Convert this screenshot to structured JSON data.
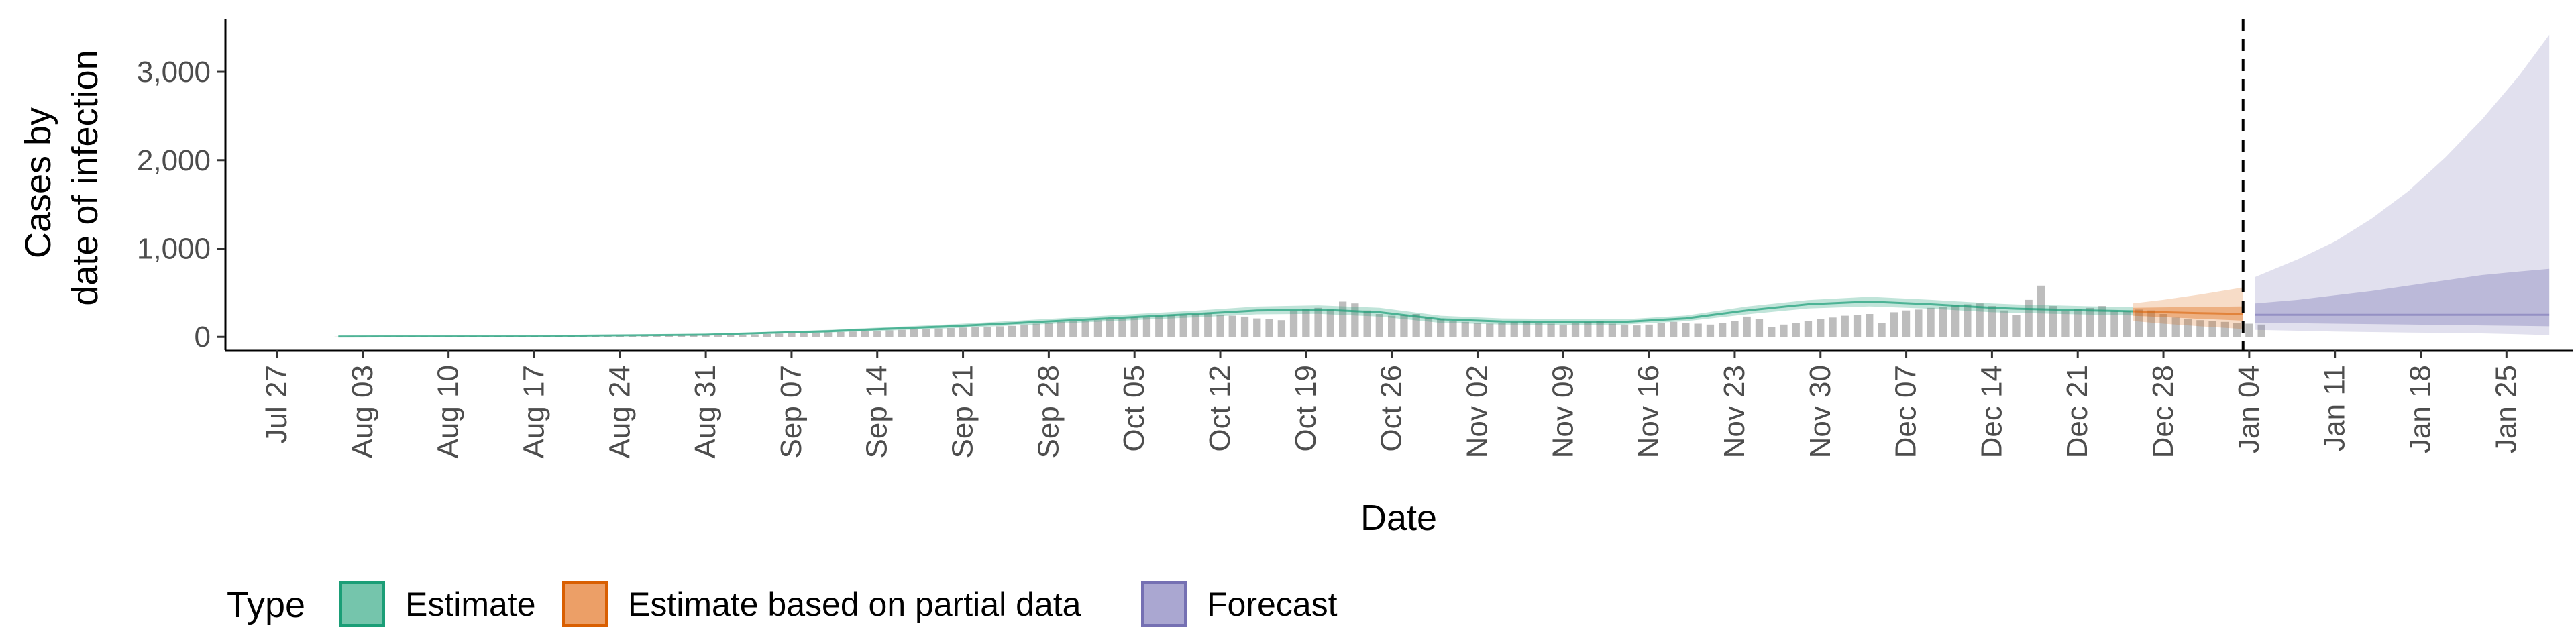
{
  "chart_data": {
    "type": "area",
    "xlabel": "Date",
    "ylabel_lines": [
      "Cases by",
      "date of infection"
    ],
    "y_ticks": [
      0,
      1000,
      2000,
      3000
    ],
    "y_tick_labels": [
      "0",
      "1,000",
      "2,000",
      "3,000"
    ],
    "ylim": [
      -150,
      3600
    ],
    "x_start_day": 0,
    "x_end_day": 190,
    "x_tick_days": [
      0,
      7,
      14,
      21,
      28,
      35,
      42,
      49,
      56,
      63,
      70,
      77,
      84,
      91,
      98,
      105,
      112,
      119,
      126,
      133,
      140,
      147,
      154,
      161,
      168,
      175,
      182
    ],
    "x_tick_labels": [
      "Jul 27",
      "Aug 03",
      "Aug 10",
      "Aug 17",
      "Aug 24",
      "Aug 31",
      "Sep 07",
      "Sep 14",
      "Sep 21",
      "Sep 28",
      "Oct 05",
      "Oct 12",
      "Oct 19",
      "Oct 26",
      "Nov 02",
      "Nov 09",
      "Nov 16",
      "Nov 23",
      "Nov 30",
      "Dec 07",
      "Dec 14",
      "Dec 21",
      "Dec 28",
      "Jan 04",
      "Jan 11",
      "Jan 18",
      "Jan 25"
    ],
    "forecast_start_day": 160.5,
    "reported_cases": {
      "start_day": 5,
      "values": [
        3,
        3,
        4,
        4,
        4,
        5,
        5,
        5,
        5,
        5,
        6,
        6,
        6,
        6,
        7,
        7,
        7,
        7,
        8,
        8,
        8,
        9,
        9,
        10,
        10,
        11,
        12,
        13,
        14,
        16,
        18,
        20,
        22,
        25,
        28,
        32,
        36,
        40,
        44,
        48,
        52,
        56,
        60,
        65,
        70,
        75,
        80,
        85,
        90,
        95,
        100,
        105,
        110,
        115,
        120,
        125,
        140,
        150,
        160,
        170,
        180,
        185,
        190,
        200,
        210,
        220,
        230,
        240,
        250,
        255,
        260,
        265,
        250,
        240,
        230,
        210,
        200,
        190,
        300,
        320,
        330,
        310,
        400,
        380,
        300,
        260,
        240,
        250,
        260,
        220,
        200,
        180,
        170,
        160,
        150,
        160,
        170,
        180,
        160,
        150,
        140,
        160,
        170,
        180,
        150,
        140,
        130,
        140,
        160,
        170,
        160,
        150,
        140,
        160,
        180,
        230,
        200,
        110,
        140,
        160,
        180,
        200,
        220,
        240,
        250,
        260,
        160,
        280,
        300,
        310,
        330,
        340,
        360,
        370,
        380,
        350,
        300,
        250,
        420,
        580,
        350,
        300,
        320,
        330,
        350,
        300,
        290,
        310,
        300,
        260,
        220,
        200,
        190,
        180,
        170,
        160,
        150,
        140
      ]
    },
    "series": [
      {
        "name": "Estimate",
        "color": "#1b9e77",
        "x": [
          5,
          20,
          35,
          45,
          55,
          65,
          75,
          80,
          85,
          90,
          95,
          100,
          105,
          110,
          115,
          120,
          125,
          130,
          135,
          140,
          142,
          145,
          148,
          150,
          151.5
        ],
        "median": [
          5,
          8,
          25,
          65,
          120,
          190,
          260,
          300,
          310,
          280,
          200,
          175,
          170,
          170,
          210,
          300,
          370,
          400,
          370,
          330,
          320,
          310,
          300,
          295,
          290
        ],
        "lower": [
          2,
          5,
          18,
          50,
          98,
          160,
          222,
          256,
          262,
          230,
          160,
          140,
          136,
          140,
          178,
          256,
          322,
          346,
          320,
          280,
          272,
          262,
          253,
          248,
          243
        ],
        "upper": [
          8,
          12,
          32,
          80,
          142,
          220,
          298,
          344,
          358,
          330,
          240,
          210,
          204,
          200,
          242,
          344,
          418,
          454,
          420,
          380,
          368,
          358,
          347,
          342,
          337
        ]
      },
      {
        "name": "Estimate based on partial data",
        "color": "#d95f02",
        "x": [
          151.5,
          154,
          157,
          160.5
        ],
        "median": [
          290,
          280,
          270,
          260
        ],
        "lower90": [
          180,
          150,
          120,
          90
        ],
        "upper90": [
          380,
          420,
          480,
          560
        ],
        "lower50": [
          240,
          225,
          205,
          185
        ],
        "upper50": [
          330,
          335,
          340,
          345
        ]
      },
      {
        "name": "Forecast",
        "color": "#7570b3",
        "x": [
          161.5,
          165,
          168,
          171,
          174,
          177,
          180,
          183,
          185.5
        ],
        "median": [
          250,
          250,
          250,
          250,
          250,
          250,
          250,
          250,
          250
        ],
        "lower90": [
          80,
          70,
          60,
          55,
          50,
          45,
          40,
          30,
          20
        ],
        "upper90": [
          680,
          880,
          1080,
          1340,
          1650,
          2030,
          2460,
          2950,
          3420
        ],
        "lower50": [
          160,
          155,
          150,
          145,
          140,
          135,
          130,
          125,
          120
        ],
        "upper50": [
          380,
          420,
          470,
          520,
          580,
          640,
          700,
          740,
          770
        ]
      }
    ],
    "legend": {
      "title": "Type",
      "position": "bottom",
      "items": [
        {
          "label": "Estimate",
          "fill": "#75c5ac",
          "stroke": "#1b9e77"
        },
        {
          "label": "Estimate based on partial data",
          "fill": "#ec9f67",
          "stroke": "#d95f02"
        },
        {
          "label": "Forecast",
          "fill": "#aaa7d1",
          "stroke": "#7570b3"
        }
      ]
    }
  }
}
